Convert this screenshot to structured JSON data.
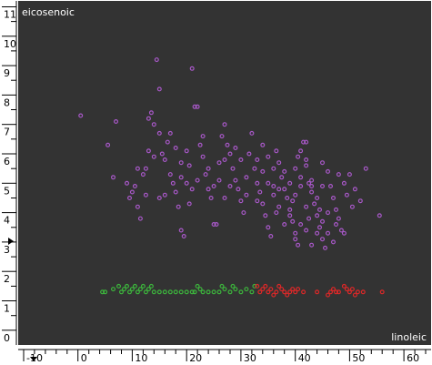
{
  "chart_data": {
    "type": "scatter",
    "title": "",
    "xlabel": "linoleic",
    "ylabel": "eicosenoic",
    "xlim": [
      -11,
      65
    ],
    "ylim": [
      -0.5,
      11.2
    ],
    "x_ticks": [
      -10,
      0,
      10,
      20,
      30,
      40,
      50,
      60
    ],
    "x_tick_labels": [
      "-10",
      "0",
      "10",
      "20",
      "30",
      "40",
      "50",
      "60"
    ],
    "y_ticks": [
      0,
      1,
      2,
      3,
      4,
      5,
      6,
      7,
      8,
      9,
      10,
      11
    ],
    "y_tick_labels": [
      "0",
      "1",
      "2",
      "3",
      "4",
      "5",
      "6",
      "7",
      "8",
      "9",
      "10",
      "11"
    ],
    "grid": false,
    "legend": "none",
    "background": "#333333",
    "series": [
      {
        "color": "#a858c8",
        "points": [
          [
            0.5,
            7.3
          ],
          [
            5.5,
            6.3
          ],
          [
            6.5,
            5.2
          ],
          [
            7.0,
            7.1
          ],
          [
            9.0,
            5.0
          ],
          [
            9.5,
            4.5
          ],
          [
            10.0,
            4.7
          ],
          [
            10.5,
            4.9
          ],
          [
            11.0,
            4.2
          ],
          [
            11.5,
            3.8
          ],
          [
            12.0,
            5.3
          ],
          [
            12.5,
            5.5
          ],
          [
            13.0,
            7.2
          ],
          [
            13.5,
            7.4
          ],
          [
            14.0,
            7.0
          ],
          [
            14.5,
            9.2
          ],
          [
            15.0,
            8.2
          ],
          [
            15.0,
            6.7
          ],
          [
            15.5,
            6.0
          ],
          [
            16.0,
            5.8
          ],
          [
            16.5,
            6.4
          ],
          [
            17.0,
            5.3
          ],
          [
            17.5,
            5.0
          ],
          [
            18.0,
            4.7
          ],
          [
            18.5,
            4.2
          ],
          [
            19.0,
            3.4
          ],
          [
            19.5,
            3.2
          ],
          [
            19.0,
            5.2
          ],
          [
            20.0,
            6.1
          ],
          [
            20.5,
            5.6
          ],
          [
            21.0,
            8.9
          ],
          [
            21.5,
            7.6
          ],
          [
            22.0,
            7.6
          ],
          [
            22.5,
            6.3
          ],
          [
            23.0,
            5.9
          ],
          [
            23.5,
            5.3
          ],
          [
            24.0,
            4.8
          ],
          [
            24.5,
            4.5
          ],
          [
            25.0,
            3.6
          ],
          [
            25.5,
            3.6
          ],
          [
            26.0,
            5.7
          ],
          [
            26.5,
            6.6
          ],
          [
            27.0,
            7.0
          ],
          [
            27.5,
            6.3
          ],
          [
            28.0,
            6.0
          ],
          [
            28.5,
            5.5
          ],
          [
            29.0,
            5.1
          ],
          [
            29.5,
            4.8
          ],
          [
            30.0,
            4.4
          ],
          [
            30.5,
            4.0
          ],
          [
            31.0,
            5.2
          ],
          [
            31.5,
            6.0
          ],
          [
            32.0,
            6.7
          ],
          [
            32.5,
            5.5
          ],
          [
            33.0,
            5.0
          ],
          [
            33.5,
            4.7
          ],
          [
            34.0,
            4.3
          ],
          [
            34.5,
            3.9
          ],
          [
            35.0,
            3.5
          ],
          [
            35.5,
            3.2
          ],
          [
            36.0,
            5.5
          ],
          [
            36.5,
            6.1
          ],
          [
            37.0,
            5.7
          ],
          [
            37.5,
            5.2
          ],
          [
            38.0,
            4.8
          ],
          [
            38.5,
            4.5
          ],
          [
            39.0,
            4.1
          ],
          [
            39.5,
            3.7
          ],
          [
            40.0,
            3.3
          ],
          [
            40.5,
            2.9
          ],
          [
            41.0,
            6.1
          ],
          [
            41.5,
            6.4
          ],
          [
            42.0,
            5.6
          ],
          [
            42.5,
            5.0
          ],
          [
            43.0,
            4.7
          ],
          [
            43.5,
            4.3
          ],
          [
            44.0,
            3.9
          ],
          [
            44.5,
            3.5
          ],
          [
            45.0,
            3.1
          ],
          [
            45.5,
            2.8
          ],
          [
            46.0,
            5.4
          ],
          [
            46.5,
            4.9
          ],
          [
            47.0,
            4.5
          ],
          [
            47.5,
            4.1
          ],
          [
            48.0,
            3.8
          ],
          [
            48.5,
            3.4
          ],
          [
            49.0,
            5.0
          ],
          [
            49.5,
            4.6
          ],
          [
            50.0,
            5.3
          ],
          [
            51.0,
            4.8
          ],
          [
            52.0,
            4.4
          ],
          [
            53.0,
            5.5
          ],
          [
            55.5,
            3.9
          ],
          [
            40.0,
            4.6
          ],
          [
            41.0,
            4.9
          ],
          [
            42.0,
            4.2
          ],
          [
            43.0,
            5.1
          ],
          [
            44.0,
            4.5
          ],
          [
            45.0,
            4.9
          ],
          [
            46.0,
            4.0
          ],
          [
            38.0,
            3.6
          ],
          [
            39.0,
            3.9
          ],
          [
            40.0,
            3.1
          ],
          [
            41.0,
            3.6
          ],
          [
            42.0,
            3.4
          ],
          [
            43.0,
            2.9
          ],
          [
            44.0,
            3.3
          ],
          [
            45.0,
            3.7
          ],
          [
            46.0,
            3.3
          ],
          [
            47.0,
            3.0
          ],
          [
            36.0,
            4.6
          ],
          [
            37.0,
            4.2
          ],
          [
            38.0,
            5.4
          ],
          [
            39.0,
            5.0
          ],
          [
            40.0,
            5.5
          ],
          [
            41.0,
            5.2
          ],
          [
            42.0,
            5.8
          ],
          [
            43.0,
            4.9
          ],
          [
            34.0,
            5.4
          ],
          [
            35.0,
            5.0
          ],
          [
            33.0,
            5.8
          ],
          [
            34.0,
            6.3
          ],
          [
            35.0,
            5.9
          ],
          [
            36.0,
            4.9
          ],
          [
            37.0,
            4.8
          ],
          [
            30.0,
            5.8
          ],
          [
            29.0,
            6.2
          ],
          [
            28.0,
            4.9
          ],
          [
            27.0,
            4.5
          ],
          [
            26.0,
            5.1
          ],
          [
            24.0,
            5.5
          ],
          [
            23.0,
            6.6
          ],
          [
            22.0,
            5.1
          ],
          [
            21.0,
            4.8
          ],
          [
            20.0,
            5.0
          ],
          [
            19.0,
            5.7
          ],
          [
            18.0,
            6.2
          ],
          [
            17.0,
            6.7
          ],
          [
            16.0,
            4.6
          ],
          [
            15.0,
            4.5
          ],
          [
            14.0,
            5.9
          ],
          [
            13.0,
            6.1
          ],
          [
            12.5,
            4.6
          ],
          [
            11.0,
            5.5
          ],
          [
            20.5,
            4.3
          ],
          [
            25.0,
            4.9
          ],
          [
            27.0,
            5.8
          ],
          [
            31.0,
            4.6
          ],
          [
            33.0,
            4.4
          ],
          [
            36.5,
            4.0
          ],
          [
            39.5,
            4.4
          ],
          [
            42.5,
            3.8
          ],
          [
            44.5,
            4.1
          ],
          [
            47.5,
            3.6
          ],
          [
            49.0,
            3.3
          ],
          [
            50.5,
            4.2
          ],
          [
            42.0,
            6.4
          ],
          [
            40.5,
            5.9
          ],
          [
            45.0,
            5.7
          ],
          [
            48.0,
            5.3
          ]
        ]
      },
      {
        "color": "#3cb43c",
        "points": [
          [
            4.5,
            1.3
          ],
          [
            5.0,
            1.3
          ],
          [
            6.5,
            1.4
          ],
          [
            7.5,
            1.5
          ],
          [
            8.0,
            1.3
          ],
          [
            8.5,
            1.4
          ],
          [
            9.0,
            1.5
          ],
          [
            9.5,
            1.3
          ],
          [
            10.0,
            1.4
          ],
          [
            10.5,
            1.5
          ],
          [
            11.0,
            1.3
          ],
          [
            11.5,
            1.4
          ],
          [
            12.0,
            1.5
          ],
          [
            12.5,
            1.3
          ],
          [
            13.0,
            1.4
          ],
          [
            13.5,
            1.5
          ],
          [
            14.0,
            1.3
          ],
          [
            15.0,
            1.3
          ],
          [
            16.0,
            1.3
          ],
          [
            17.0,
            1.3
          ],
          [
            18.0,
            1.3
          ],
          [
            19.0,
            1.3
          ],
          [
            20.0,
            1.3
          ],
          [
            21.0,
            1.3
          ],
          [
            21.5,
            1.3
          ],
          [
            22.0,
            1.5
          ],
          [
            22.5,
            1.4
          ],
          [
            23.0,
            1.3
          ],
          [
            24.0,
            1.3
          ],
          [
            25.0,
            1.3
          ],
          [
            26.0,
            1.3
          ],
          [
            26.5,
            1.5
          ],
          [
            27.0,
            1.4
          ],
          [
            28.0,
            1.3
          ],
          [
            28.5,
            1.5
          ],
          [
            29.0,
            1.4
          ],
          [
            30.0,
            1.3
          ],
          [
            31.0,
            1.4
          ],
          [
            32.0,
            1.3
          ],
          [
            32.5,
            1.5
          ]
        ]
      },
      {
        "color": "#dc2828",
        "points": [
          [
            33.0,
            1.5
          ],
          [
            33.5,
            1.3
          ],
          [
            34.0,
            1.4
          ],
          [
            34.5,
            1.5
          ],
          [
            35.0,
            1.3
          ],
          [
            35.5,
            1.4
          ],
          [
            36.0,
            1.2
          ],
          [
            36.5,
            1.3
          ],
          [
            37.0,
            1.5
          ],
          [
            37.5,
            1.4
          ],
          [
            38.0,
            1.3
          ],
          [
            38.5,
            1.2
          ],
          [
            39.0,
            1.3
          ],
          [
            39.5,
            1.4
          ],
          [
            40.0,
            1.3
          ],
          [
            40.5,
            1.4
          ],
          [
            41.5,
            1.3
          ],
          [
            44.0,
            1.3
          ],
          [
            46.0,
            1.2
          ],
          [
            46.5,
            1.3
          ],
          [
            47.0,
            1.4
          ],
          [
            47.5,
            1.3
          ],
          [
            48.0,
            1.3
          ],
          [
            49.0,
            1.5
          ],
          [
            49.5,
            1.4
          ],
          [
            50.0,
            1.3
          ],
          [
            50.5,
            1.4
          ],
          [
            51.0,
            1.2
          ],
          [
            51.5,
            1.3
          ],
          [
            52.5,
            1.3
          ],
          [
            56.0,
            1.3
          ]
        ]
      }
    ]
  }
}
